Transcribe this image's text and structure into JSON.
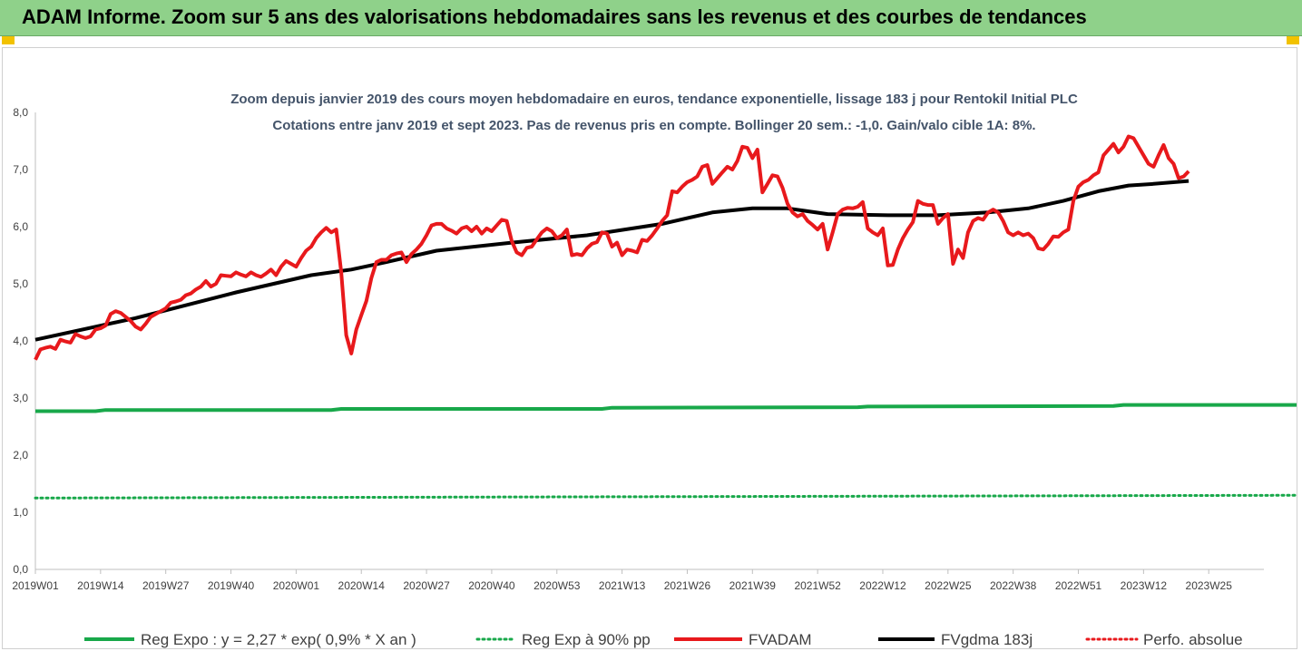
{
  "banner": {
    "title": "ADAM Informe. Zoom sur 5 ans des valorisations hebdomadaires sans les revenus et des courbes de tendances"
  },
  "colors": {
    "banner_bg": "#8fd18a",
    "accent": "#f2c200",
    "reg_expo": "#18a84a",
    "fvadam": "#e8191c",
    "fvgdma": "#000000",
    "perfo": "#e8191c"
  },
  "chart_data": {
    "type": "line",
    "title": "Zoom depuis janvier 2019 des cours moyen hebdomadaire en euros, tendance exponentielle, lissage 183 j pour Rentokil Initial PLC",
    "subtitle": "Cotations entre janv 2019 et sept 2023. Pas de revenus pris en compte. Bollinger 20 sem.: -1,0. Gain/valo cible 1A: 8%.",
    "xlabel": "",
    "ylabel": "",
    "ylim": [
      0,
      8
    ],
    "yticks": [
      "0,0",
      "1,0",
      "2,0",
      "3,0",
      "4,0",
      "5,0",
      "6,0",
      "7,0",
      "8,0"
    ],
    "xticks": [
      "2019W01",
      "2019W14",
      "2019W27",
      "2019W40",
      "2020W01",
      "2020W14",
      "2020W27",
      "2020W40",
      "2020W53",
      "2021W13",
      "2021W26",
      "2021W39",
      "2021W52",
      "2022W12",
      "2022W25",
      "2022W38",
      "2022W51",
      "2023W12",
      "2023W25"
    ],
    "grid": false,
    "legend": "bottom",
    "n_points": 246,
    "series": [
      {
        "name": "Reg  Expo : y = 2,27 * exp( 0,9% *  X   an )",
        "style": "solid",
        "color": "#18a84a",
        "points": [
          [
            0,
            2.77
          ],
          [
            12,
            2.77
          ],
          [
            14,
            2.79
          ],
          [
            59,
            2.79
          ],
          [
            61,
            2.81
          ],
          [
            113,
            2.81
          ],
          [
            115,
            2.83
          ],
          [
            164,
            2.84
          ],
          [
            166,
            2.85
          ],
          [
            215,
            2.86
          ],
          [
            217,
            2.88
          ],
          [
            257,
            2.88
          ],
          [
            259,
            2.9
          ],
          [
            264,
            2.9
          ]
        ]
      },
      {
        "name": "Reg  Exp à 90% pp",
        "style": "dotted",
        "color": "#18a84a",
        "points": [
          [
            0,
            1.25
          ],
          [
            264,
            1.3
          ]
        ]
      },
      {
        "name": "FVADAM",
        "style": "solid",
        "color": "#e8191c",
        "points": [
          [
            0,
            3.67
          ],
          [
            1,
            3.85
          ],
          [
            2,
            3.88
          ],
          [
            3,
            3.9
          ],
          [
            4,
            3.86
          ],
          [
            5,
            4.02
          ],
          [
            6,
            3.99
          ],
          [
            7,
            3.97
          ],
          [
            8,
            4.12
          ],
          [
            9,
            4.08
          ],
          [
            10,
            4.05
          ],
          [
            11,
            4.08
          ],
          [
            12,
            4.2
          ],
          [
            13,
            4.22
          ],
          [
            14,
            4.27
          ],
          [
            15,
            4.47
          ],
          [
            16,
            4.52
          ],
          [
            17,
            4.49
          ],
          [
            18,
            4.42
          ],
          [
            19,
            4.35
          ],
          [
            20,
            4.25
          ],
          [
            21,
            4.2
          ],
          [
            22,
            4.3
          ],
          [
            23,
            4.42
          ],
          [
            24,
            4.47
          ],
          [
            25,
            4.52
          ],
          [
            26,
            4.57
          ],
          [
            27,
            4.67
          ],
          [
            28,
            4.69
          ],
          [
            29,
            4.72
          ],
          [
            30,
            4.8
          ],
          [
            31,
            4.83
          ],
          [
            32,
            4.9
          ],
          [
            33,
            4.95
          ],
          [
            34,
            5.05
          ],
          [
            35,
            4.95
          ],
          [
            36,
            5.0
          ],
          [
            37,
            5.15
          ],
          [
            38,
            5.14
          ],
          [
            39,
            5.13
          ],
          [
            40,
            5.2
          ],
          [
            41,
            5.16
          ],
          [
            42,
            5.13
          ],
          [
            43,
            5.2
          ],
          [
            44,
            5.15
          ],
          [
            45,
            5.12
          ],
          [
            46,
            5.18
          ],
          [
            47,
            5.25
          ],
          [
            48,
            5.15
          ],
          [
            49,
            5.3
          ],
          [
            50,
            5.4
          ],
          [
            51,
            5.35
          ],
          [
            52,
            5.3
          ],
          [
            53,
            5.45
          ],
          [
            54,
            5.58
          ],
          [
            55,
            5.65
          ],
          [
            56,
            5.8
          ],
          [
            57,
            5.9
          ],
          [
            58,
            5.98
          ],
          [
            59,
            5.9
          ],
          [
            60,
            5.95
          ],
          [
            61,
            5.2
          ],
          [
            62,
            4.1
          ],
          [
            63,
            3.78
          ],
          [
            64,
            4.2
          ],
          [
            65,
            4.45
          ],
          [
            66,
            4.7
          ],
          [
            67,
            5.1
          ],
          [
            68,
            5.38
          ],
          [
            69,
            5.42
          ],
          [
            70,
            5.42
          ],
          [
            71,
            5.5
          ],
          [
            72,
            5.53
          ],
          [
            73,
            5.55
          ],
          [
            74,
            5.38
          ],
          [
            75,
            5.52
          ],
          [
            76,
            5.6
          ],
          [
            77,
            5.7
          ],
          [
            78,
            5.85
          ],
          [
            79,
            6.02
          ],
          [
            80,
            6.05
          ],
          [
            81,
            6.05
          ],
          [
            82,
            5.97
          ],
          [
            83,
            5.93
          ],
          [
            84,
            5.88
          ],
          [
            85,
            5.97
          ],
          [
            86,
            6.0
          ],
          [
            87,
            5.92
          ],
          [
            88,
            6.0
          ],
          [
            89,
            5.88
          ],
          [
            90,
            5.97
          ],
          [
            91,
            5.92
          ],
          [
            92,
            6.02
          ],
          [
            93,
            6.12
          ],
          [
            94,
            6.1
          ],
          [
            95,
            5.75
          ],
          [
            96,
            5.55
          ],
          [
            97,
            5.5
          ],
          [
            98,
            5.63
          ],
          [
            99,
            5.65
          ],
          [
            100,
            5.78
          ],
          [
            101,
            5.9
          ],
          [
            102,
            5.97
          ],
          [
            103,
            5.92
          ],
          [
            104,
            5.8
          ],
          [
            105,
            5.85
          ],
          [
            106,
            5.95
          ],
          [
            107,
            5.5
          ],
          [
            108,
            5.52
          ],
          [
            109,
            5.5
          ],
          [
            110,
            5.62
          ],
          [
            111,
            5.7
          ],
          [
            112,
            5.73
          ],
          [
            113,
            5.9
          ],
          [
            114,
            5.88
          ],
          [
            115,
            5.65
          ],
          [
            116,
            5.72
          ],
          [
            117,
            5.5
          ],
          [
            118,
            5.6
          ],
          [
            119,
            5.58
          ],
          [
            120,
            5.55
          ],
          [
            121,
            5.77
          ],
          [
            122,
            5.75
          ],
          [
            123,
            5.85
          ],
          [
            124,
            5.97
          ],
          [
            125,
            6.1
          ],
          [
            126,
            6.2
          ],
          [
            127,
            6.62
          ],
          [
            128,
            6.6
          ],
          [
            129,
            6.7
          ],
          [
            130,
            6.78
          ],
          [
            131,
            6.82
          ],
          [
            132,
            6.88
          ],
          [
            133,
            7.05
          ],
          [
            134,
            7.08
          ],
          [
            135,
            6.75
          ],
          [
            136,
            6.85
          ],
          [
            137,
            6.95
          ],
          [
            138,
            7.05
          ],
          [
            139,
            7.0
          ],
          [
            140,
            7.15
          ],
          [
            141,
            7.4
          ],
          [
            142,
            7.38
          ],
          [
            143,
            7.2
          ],
          [
            144,
            7.35
          ],
          [
            145,
            6.6
          ],
          [
            146,
            6.75
          ],
          [
            147,
            6.9
          ],
          [
            148,
            6.88
          ],
          [
            149,
            6.68
          ],
          [
            150,
            6.4
          ],
          [
            151,
            6.25
          ],
          [
            152,
            6.18
          ],
          [
            153,
            6.22
          ],
          [
            154,
            6.1
          ],
          [
            155,
            6.03
          ],
          [
            156,
            5.95
          ],
          [
            157,
            6.05
          ],
          [
            158,
            5.6
          ],
          [
            159,
            5.9
          ],
          [
            160,
            6.22
          ],
          [
            161,
            6.3
          ],
          [
            162,
            6.33
          ],
          [
            163,
            6.32
          ],
          [
            164,
            6.35
          ],
          [
            165,
            6.43
          ],
          [
            166,
            5.97
          ],
          [
            167,
            5.9
          ],
          [
            168,
            5.85
          ],
          [
            169,
            5.97
          ],
          [
            170,
            5.32
          ],
          [
            171,
            5.33
          ],
          [
            172,
            5.6
          ],
          [
            173,
            5.8
          ],
          [
            174,
            5.95
          ],
          [
            175,
            6.08
          ],
          [
            176,
            6.45
          ],
          [
            177,
            6.4
          ],
          [
            178,
            6.38
          ],
          [
            179,
            6.38
          ],
          [
            180,
            6.05
          ],
          [
            181,
            6.15
          ],
          [
            182,
            6.22
          ],
          [
            183,
            5.35
          ],
          [
            184,
            5.6
          ],
          [
            185,
            5.45
          ],
          [
            186,
            5.9
          ],
          [
            187,
            6.1
          ],
          [
            188,
            6.15
          ],
          [
            189,
            6.12
          ],
          [
            190,
            6.25
          ],
          [
            191,
            6.3
          ],
          [
            192,
            6.25
          ],
          [
            193,
            6.1
          ],
          [
            194,
            5.9
          ],
          [
            195,
            5.85
          ],
          [
            196,
            5.9
          ],
          [
            197,
            5.85
          ],
          [
            198,
            5.88
          ],
          [
            199,
            5.8
          ],
          [
            200,
            5.62
          ],
          [
            201,
            5.6
          ],
          [
            202,
            5.7
          ],
          [
            203,
            5.83
          ],
          [
            204,
            5.82
          ],
          [
            205,
            5.9
          ],
          [
            206,
            5.95
          ],
          [
            207,
            6.45
          ],
          [
            208,
            6.7
          ],
          [
            209,
            6.78
          ],
          [
            210,
            6.82
          ],
          [
            211,
            6.9
          ],
          [
            212,
            6.95
          ],
          [
            213,
            7.25
          ],
          [
            214,
            7.35
          ],
          [
            215,
            7.45
          ],
          [
            216,
            7.3
          ],
          [
            217,
            7.4
          ],
          [
            218,
            7.58
          ],
          [
            219,
            7.55
          ],
          [
            220,
            7.4
          ],
          [
            221,
            7.25
          ],
          [
            222,
            7.1
          ],
          [
            223,
            7.05
          ],
          [
            224,
            7.25
          ],
          [
            225,
            7.43
          ],
          [
            226,
            7.2
          ],
          [
            227,
            7.1
          ],
          [
            228,
            6.85
          ],
          [
            229,
            6.88
          ],
          [
            230,
            6.97
          ]
        ]
      },
      {
        "name": "FVgdma  183j",
        "style": "solid",
        "color": "#000000",
        "points": [
          [
            0,
            4.02
          ],
          [
            20,
            4.4
          ],
          [
            40,
            4.85
          ],
          [
            55,
            5.15
          ],
          [
            63,
            5.25
          ],
          [
            70,
            5.38
          ],
          [
            80,
            5.58
          ],
          [
            95,
            5.72
          ],
          [
            110,
            5.85
          ],
          [
            125,
            6.05
          ],
          [
            135,
            6.25
          ],
          [
            143,
            6.32
          ],
          [
            150,
            6.32
          ],
          [
            158,
            6.22
          ],
          [
            170,
            6.2
          ],
          [
            180,
            6.2
          ],
          [
            190,
            6.25
          ],
          [
            198,
            6.32
          ],
          [
            205,
            6.45
          ],
          [
            212,
            6.62
          ],
          [
            218,
            6.72
          ],
          [
            223,
            6.75
          ],
          [
            230,
            6.8
          ]
        ]
      },
      {
        "name": "Perfo. absolue",
        "style": "dotted",
        "color": "#e8191c",
        "points": []
      }
    ]
  }
}
